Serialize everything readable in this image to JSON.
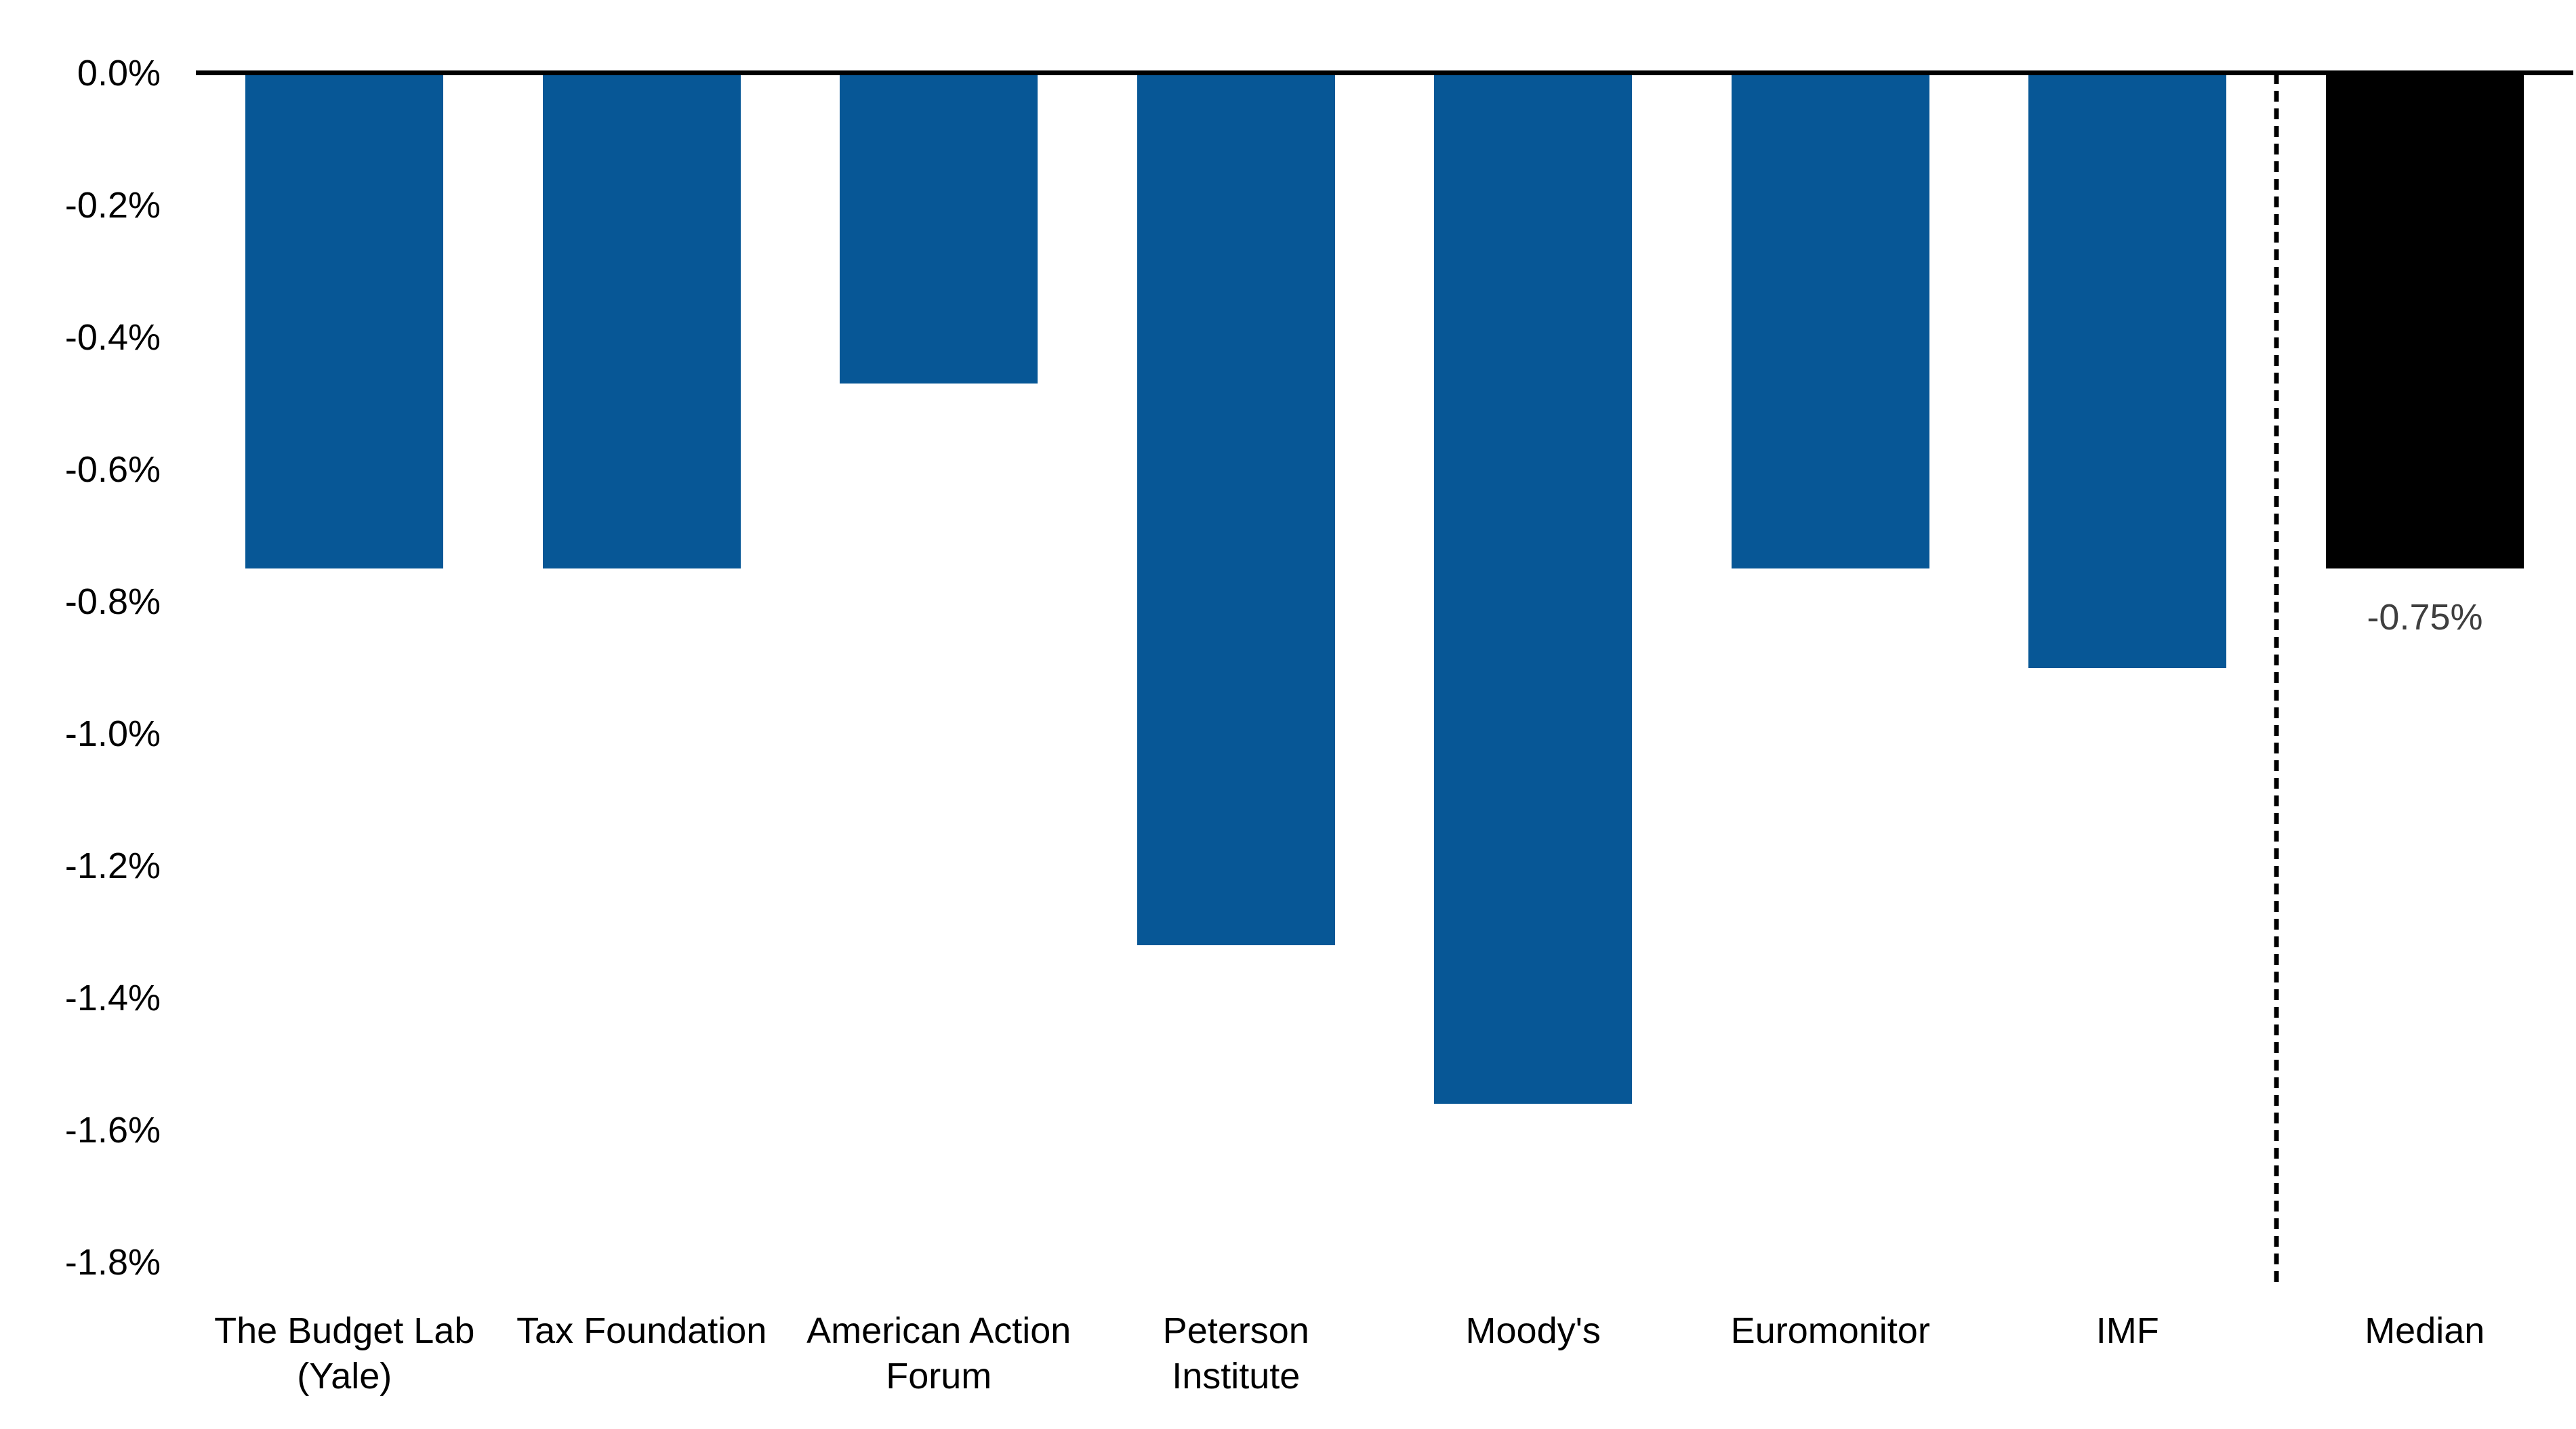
{
  "page": {
    "background_color": "#ffffff"
  },
  "chart_data": {
    "type": "bar",
    "orientation": "vertical",
    "title": "",
    "categories": [
      [
        "The Budget Lab",
        "(Yale)"
      ],
      [
        "Tax Foundation"
      ],
      [
        "American Action",
        "Forum"
      ],
      [
        "Peterson",
        "Institute"
      ],
      [
        "Moody's"
      ],
      [
        "Euromonitor"
      ],
      [
        "IMF"
      ],
      [
        "Median"
      ]
    ],
    "values": [
      -0.75,
      -0.75,
      -0.47,
      -1.32,
      -1.56,
      -0.75,
      -0.9,
      -0.75
    ],
    "unit": "%",
    "bar_colors": [
      "#075796",
      "#075796",
      "#075796",
      "#075796",
      "#075796",
      "#075796",
      "#075796",
      "#000000"
    ],
    "y_axis": {
      "tick_labels": [
        "0.0%",
        "-0.2%",
        "-0.4%",
        "-0.6%",
        "-0.8%",
        "-1.0%",
        "-1.2%",
        "-1.4%",
        "-1.6%",
        "-1.8%"
      ],
      "tick_values": [
        0,
        -0.2,
        -0.4,
        -0.6,
        -0.8,
        -1.0,
        -1.2,
        -1.4,
        -1.6,
        -1.8
      ],
      "range": [
        0,
        -1.84
      ],
      "grid": false
    },
    "legend": null,
    "separator_line": {
      "style": "dashed",
      "between_categories": [
        "IMF",
        "Median"
      ]
    },
    "annotations": [
      {
        "category": "Median",
        "text": "-0.75%",
        "color": "#3f3f3f"
      }
    ],
    "colors": {
      "axis_line": "#000000",
      "tick_text": "#000000",
      "category_text": "#000000"
    }
  }
}
